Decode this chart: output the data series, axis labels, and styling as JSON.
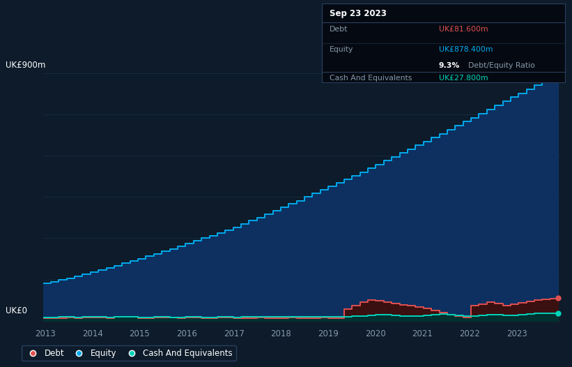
{
  "background_color": "#0d1b2a",
  "plot_bg_color": "#0d1b2a",
  "grid_color": "#1a2e45",
  "title_date": "Sep 23 2023",
  "tooltip": {
    "debt_label": "Debt",
    "debt_value": "UK£81.600m",
    "debt_color": "#e05050",
    "equity_label": "Equity",
    "equity_value": "UK£878.400m",
    "equity_color": "#00aaee",
    "ratio_value": "9.3%",
    "ratio_label": "Debt/Equity Ratio",
    "cash_label": "Cash And Equivalents",
    "cash_value": "UK£27.800m",
    "cash_color": "#00d4bb"
  },
  "ylabel": "UK£900m",
  "ylabel0": "UK£0",
  "xticklabels": [
    "2013",
    "2014",
    "2015",
    "2016",
    "2017",
    "2018",
    "2019",
    "2020",
    "2021",
    "2022",
    "2023"
  ],
  "equity_quarterly": [
    135,
    140,
    148,
    155,
    162,
    170,
    178,
    185,
    192,
    200,
    210,
    218,
    226,
    235,
    244,
    252,
    261,
    270,
    280,
    290,
    300,
    310,
    320,
    330,
    340,
    352,
    364,
    375,
    387,
    399,
    412,
    425,
    437,
    450,
    463,
    476,
    489,
    502,
    515,
    528,
    541,
    555,
    568,
    582,
    596,
    610,
    624,
    638,
    652,
    666,
    680,
    695,
    710,
    724,
    738,
    753,
    768,
    783,
    798,
    813,
    828,
    843,
    858,
    870,
    878,
    878
  ],
  "debt_quarterly": [
    8,
    10,
    10,
    12,
    10,
    11,
    11,
    12,
    10,
    13,
    14,
    13,
    10,
    10,
    11,
    12,
    11,
    10,
    12,
    12,
    10,
    10,
    11,
    12,
    10,
    10,
    10,
    11,
    10,
    10,
    10,
    11,
    10,
    10,
    10,
    11,
    10,
    10,
    42,
    55,
    68,
    75,
    72,
    68,
    62,
    58,
    54,
    50,
    45,
    38,
    30,
    22,
    16,
    12,
    55,
    60,
    68,
    62,
    55,
    60,
    65,
    70,
    75,
    78,
    80,
    82
  ],
  "cash_quarterly": [
    12,
    11,
    13,
    14,
    12,
    13,
    14,
    13,
    12,
    14,
    14,
    13,
    12,
    12,
    13,
    14,
    12,
    12,
    13,
    14,
    12,
    12,
    13,
    14,
    12,
    13,
    13,
    14,
    13,
    13,
    14,
    14,
    14,
    14,
    14,
    15,
    15,
    15,
    15,
    16,
    18,
    20,
    22,
    22,
    20,
    18,
    17,
    16,
    20,
    22,
    24,
    22,
    20,
    18,
    18,
    20,
    22,
    22,
    20,
    20,
    22,
    24,
    26,
    27,
    27,
    28
  ],
  "equity_color": "#00aaee",
  "equity_fill_color": "#0d3060",
  "debt_color": "#e05050",
  "debt_fill_color": "#3a1010",
  "cash_color": "#00d4bb",
  "cash_fill_color": "#003030",
  "tooltip_bg": "#050a12",
  "tooltip_border": "#2a4060",
  "legend_bg": "#0d1b2a",
  "legend_border": "#2a4060"
}
